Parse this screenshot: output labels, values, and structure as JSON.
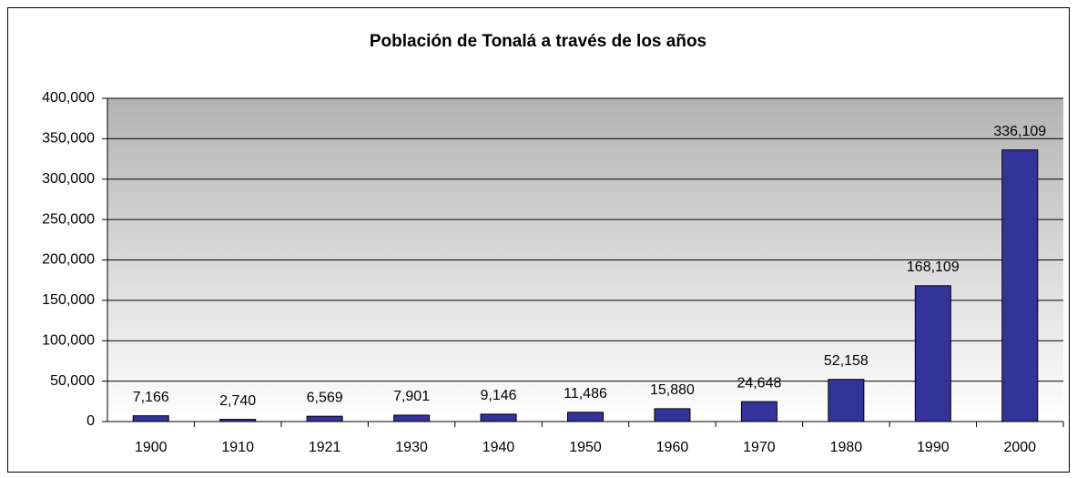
{
  "chart_data": {
    "type": "bar",
    "title": "Población de Tonalá a través de los años",
    "categories": [
      "1900",
      "1910",
      "1921",
      "1930",
      "1940",
      "1950",
      "1960",
      "1970",
      "1980",
      "1990",
      "2000"
    ],
    "values": [
      7166,
      2740,
      6569,
      7901,
      9146,
      11486,
      15880,
      24648,
      52158,
      168109,
      336109
    ],
    "value_labels": [
      "7,166",
      "2,740",
      "6,569",
      "7,901",
      "9,146",
      "11,486",
      "15,880",
      "24,648",
      "52,158",
      "168,109",
      "336,109"
    ],
    "color": "#333399",
    "ylim": [
      0,
      400000
    ],
    "yticks": [
      0,
      {
        "value": 50000,
        "label": "50,000"
      },
      {
        "value": 100000,
        "label": "100,000"
      },
      {
        "value": 150000,
        "label": "150,000"
      },
      {
        "value": 200000,
        "label": "200,000"
      },
      {
        "value": 250000,
        "label": "250,000"
      },
      {
        "value": 300000,
        "label": "300,000"
      },
      {
        "value": 350000,
        "label": "350,000"
      },
      {
        "value": 400000,
        "label": "400,000"
      }
    ],
    "grid": true
  }
}
